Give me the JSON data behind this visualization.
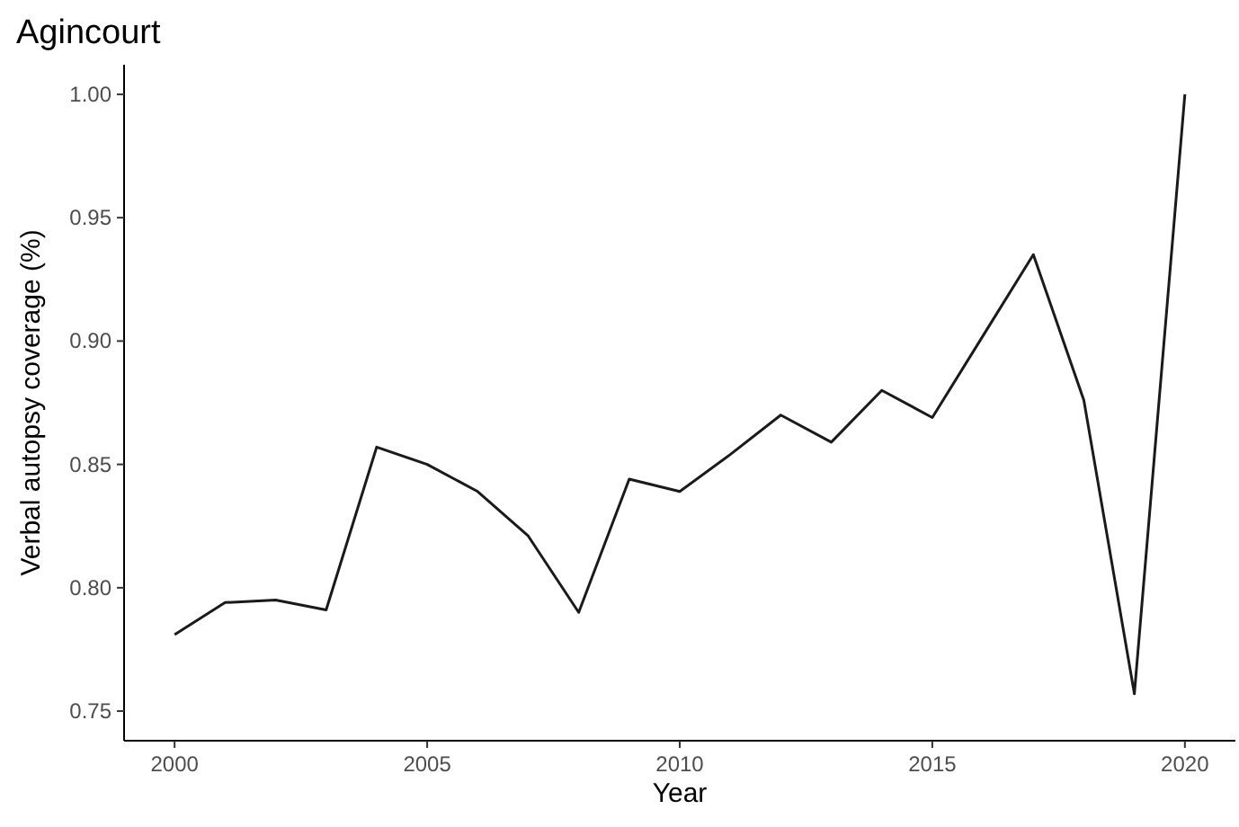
{
  "chart_data": {
    "type": "line",
    "title": "Agincourt",
    "xlabel": "Year",
    "ylabel": "Verbal autopsy coverage (%)",
    "x": [
      2000,
      2001,
      2002,
      2003,
      2004,
      2005,
      2006,
      2007,
      2008,
      2009,
      2010,
      2011,
      2012,
      2013,
      2014,
      2015,
      2016,
      2017,
      2018,
      2019,
      2020
    ],
    "series": [
      {
        "color": "#1a1a1a",
        "values": [
          0.781,
          0.794,
          0.795,
          0.791,
          0.857,
          0.85,
          0.839,
          0.821,
          0.79,
          0.844,
          0.839,
          0.854,
          0.87,
          0.859,
          0.88,
          0.869,
          0.902,
          0.935,
          0.876,
          0.757,
          1.0
        ]
      }
    ],
    "xlim": [
      1999,
      2021
    ],
    "xticks": [
      2000,
      2005,
      2010,
      2015,
      2020
    ],
    "ylim": [
      0.738,
      1.012
    ],
    "yticks": [
      {
        "value": 0.75,
        "label": "0.75"
      },
      {
        "value": 0.8,
        "label": "0.80"
      },
      {
        "value": 0.85,
        "label": "0.85"
      },
      {
        "value": 0.9,
        "label": "0.90"
      },
      {
        "value": 0.95,
        "label": "0.95"
      },
      {
        "value": 1.0,
        "label": "1.00"
      }
    ],
    "grid": false,
    "marker": "none",
    "line_style": "solid"
  }
}
